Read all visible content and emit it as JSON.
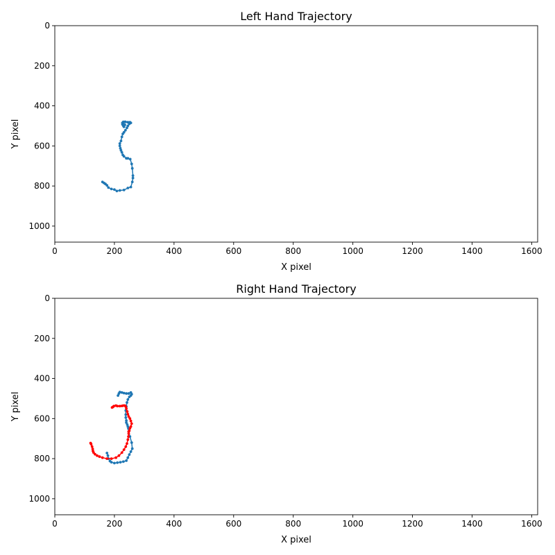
{
  "chart_data": [
    {
      "type": "line",
      "title": "Left Hand Trajectory",
      "xlabel": "X pixel",
      "ylabel": "Y pixel",
      "xlim": [
        0,
        1620
      ],
      "ylim": [
        1080,
        0
      ],
      "y_inverted": true,
      "grid": false,
      "legend": "none",
      "xticks": [
        0,
        200,
        400,
        600,
        800,
        1000,
        1200,
        1400,
        1600
      ],
      "yticks": [
        0,
        200,
        400,
        600,
        800,
        1000
      ],
      "series": [
        {
          "color": "#1f77b4",
          "marker": "circle",
          "x": [
            160,
            165,
            170,
            175,
            180,
            190,
            200,
            208,
            218,
            232,
            245,
            255,
            260,
            262,
            262,
            260,
            258,
            253,
            245,
            240,
            232,
            228,
            225,
            222,
            220,
            218,
            218,
            222,
            225,
            228,
            232,
            237,
            242,
            245,
            250,
            255,
            252,
            245,
            237,
            230,
            227,
            227,
            230,
            232,
            235,
            230,
            227,
            230,
            235
          ],
          "y": [
            780,
            785,
            790,
            797,
            808,
            815,
            818,
            825,
            822,
            820,
            810,
            805,
            780,
            760,
            748,
            712,
            690,
            666,
            662,
            662,
            652,
            645,
            632,
            622,
            612,
            600,
            588,
            575,
            555,
            540,
            532,
            522,
            510,
            500,
            490,
            485,
            482,
            482,
            480,
            480,
            485,
            493,
            500,
            505,
            495,
            490,
            485,
            482,
            480
          ]
        }
      ]
    },
    {
      "type": "line",
      "title": "Right Hand Trajectory",
      "xlabel": "X pixel",
      "ylabel": "Y pixel",
      "xlim": [
        0,
        1620
      ],
      "ylim": [
        1080,
        0
      ],
      "y_inverted": true,
      "grid": false,
      "legend": "none",
      "xticks": [
        0,
        200,
        400,
        600,
        800,
        1000,
        1200,
        1400,
        1600
      ],
      "yticks": [
        0,
        200,
        400,
        600,
        800,
        1000
      ],
      "series": [
        {
          "color": "#1f77b4",
          "marker": "circle",
          "x": [
            175,
            178,
            180,
            185,
            190,
            200,
            210,
            220,
            230,
            240,
            245,
            250,
            255,
            260,
            258,
            252,
            248,
            247,
            245,
            243,
            240,
            240,
            238,
            238,
            238,
            240,
            242,
            245,
            250,
            255,
            258,
            255,
            248,
            240,
            232,
            225,
            218,
            215,
            212
          ],
          "y": [
            772,
            785,
            800,
            812,
            818,
            822,
            820,
            818,
            815,
            810,
            795,
            780,
            765,
            750,
            720,
            690,
            665,
            650,
            640,
            630,
            620,
            610,
            595,
            580,
            560,
            540,
            520,
            505,
            492,
            485,
            478,
            470,
            475,
            475,
            473,
            470,
            468,
            475,
            485
          ]
        },
        {
          "color": "#ff0000",
          "marker": "circle",
          "x": [
            120,
            122,
            125,
            127,
            128,
            130,
            135,
            142,
            150,
            160,
            175,
            190,
            205,
            215,
            225,
            232,
            238,
            242,
            245,
            247,
            248,
            248,
            250,
            252,
            255,
            258,
            255,
            252,
            248,
            245,
            243,
            240,
            238,
            235,
            230,
            225,
            218,
            210,
            205,
            198,
            195,
            192
          ],
          "y": [
            722,
            728,
            740,
            752,
            762,
            770,
            778,
            785,
            790,
            795,
            800,
            800,
            795,
            785,
            770,
            755,
            740,
            725,
            705,
            690,
            675,
            665,
            660,
            648,
            640,
            625,
            612,
            600,
            590,
            578,
            565,
            550,
            540,
            535,
            535,
            537,
            538,
            538,
            535,
            538,
            542,
            545
          ]
        }
      ]
    }
  ]
}
